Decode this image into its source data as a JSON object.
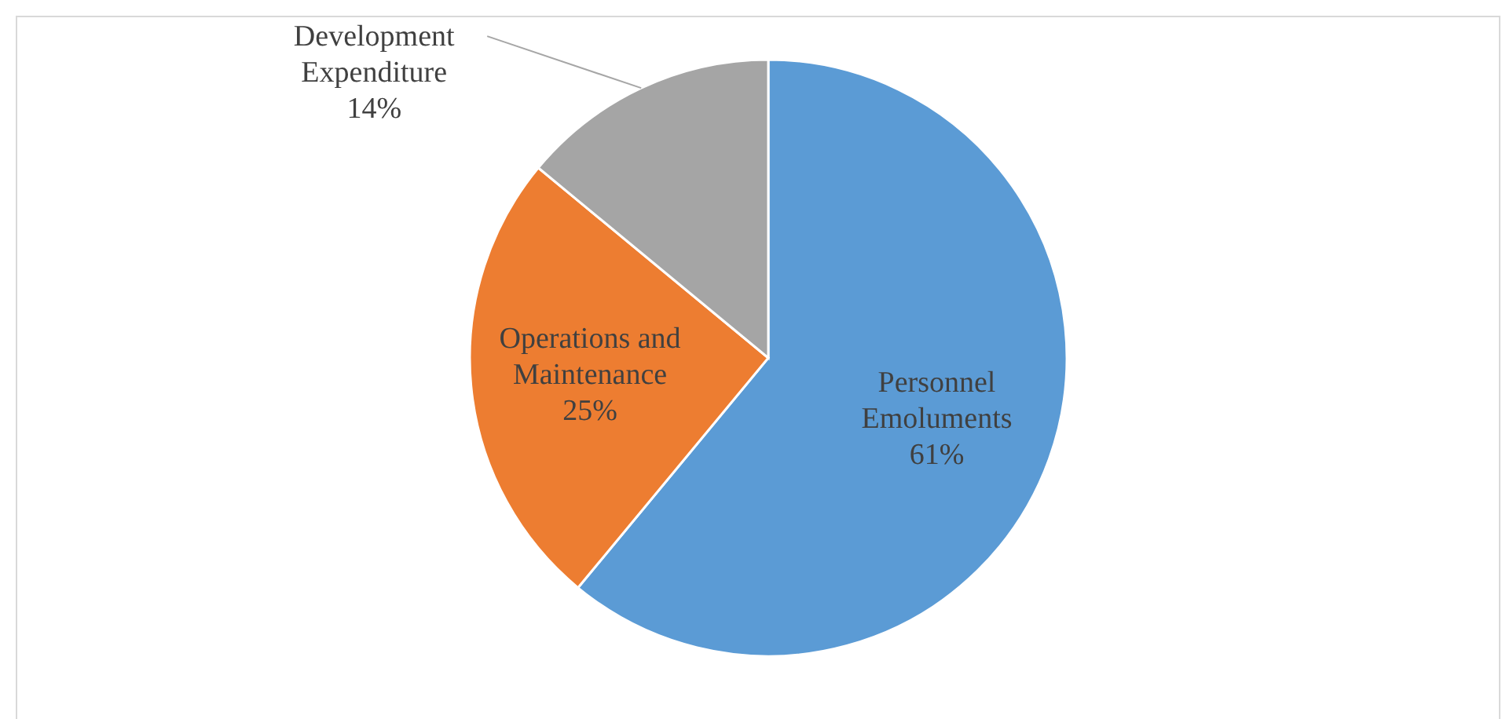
{
  "chart_data": {
    "type": "pie",
    "categories": [
      "Personnel Emoluments",
      "Operations and Maintenance",
      "Development Expenditure"
    ],
    "values": [
      61,
      25,
      14
    ],
    "colors": [
      "#5b9bd5",
      "#ed7d31",
      "#a5a5a5"
    ],
    "value_labels": [
      "61%",
      "25%",
      "14%"
    ],
    "legend": false
  }
}
